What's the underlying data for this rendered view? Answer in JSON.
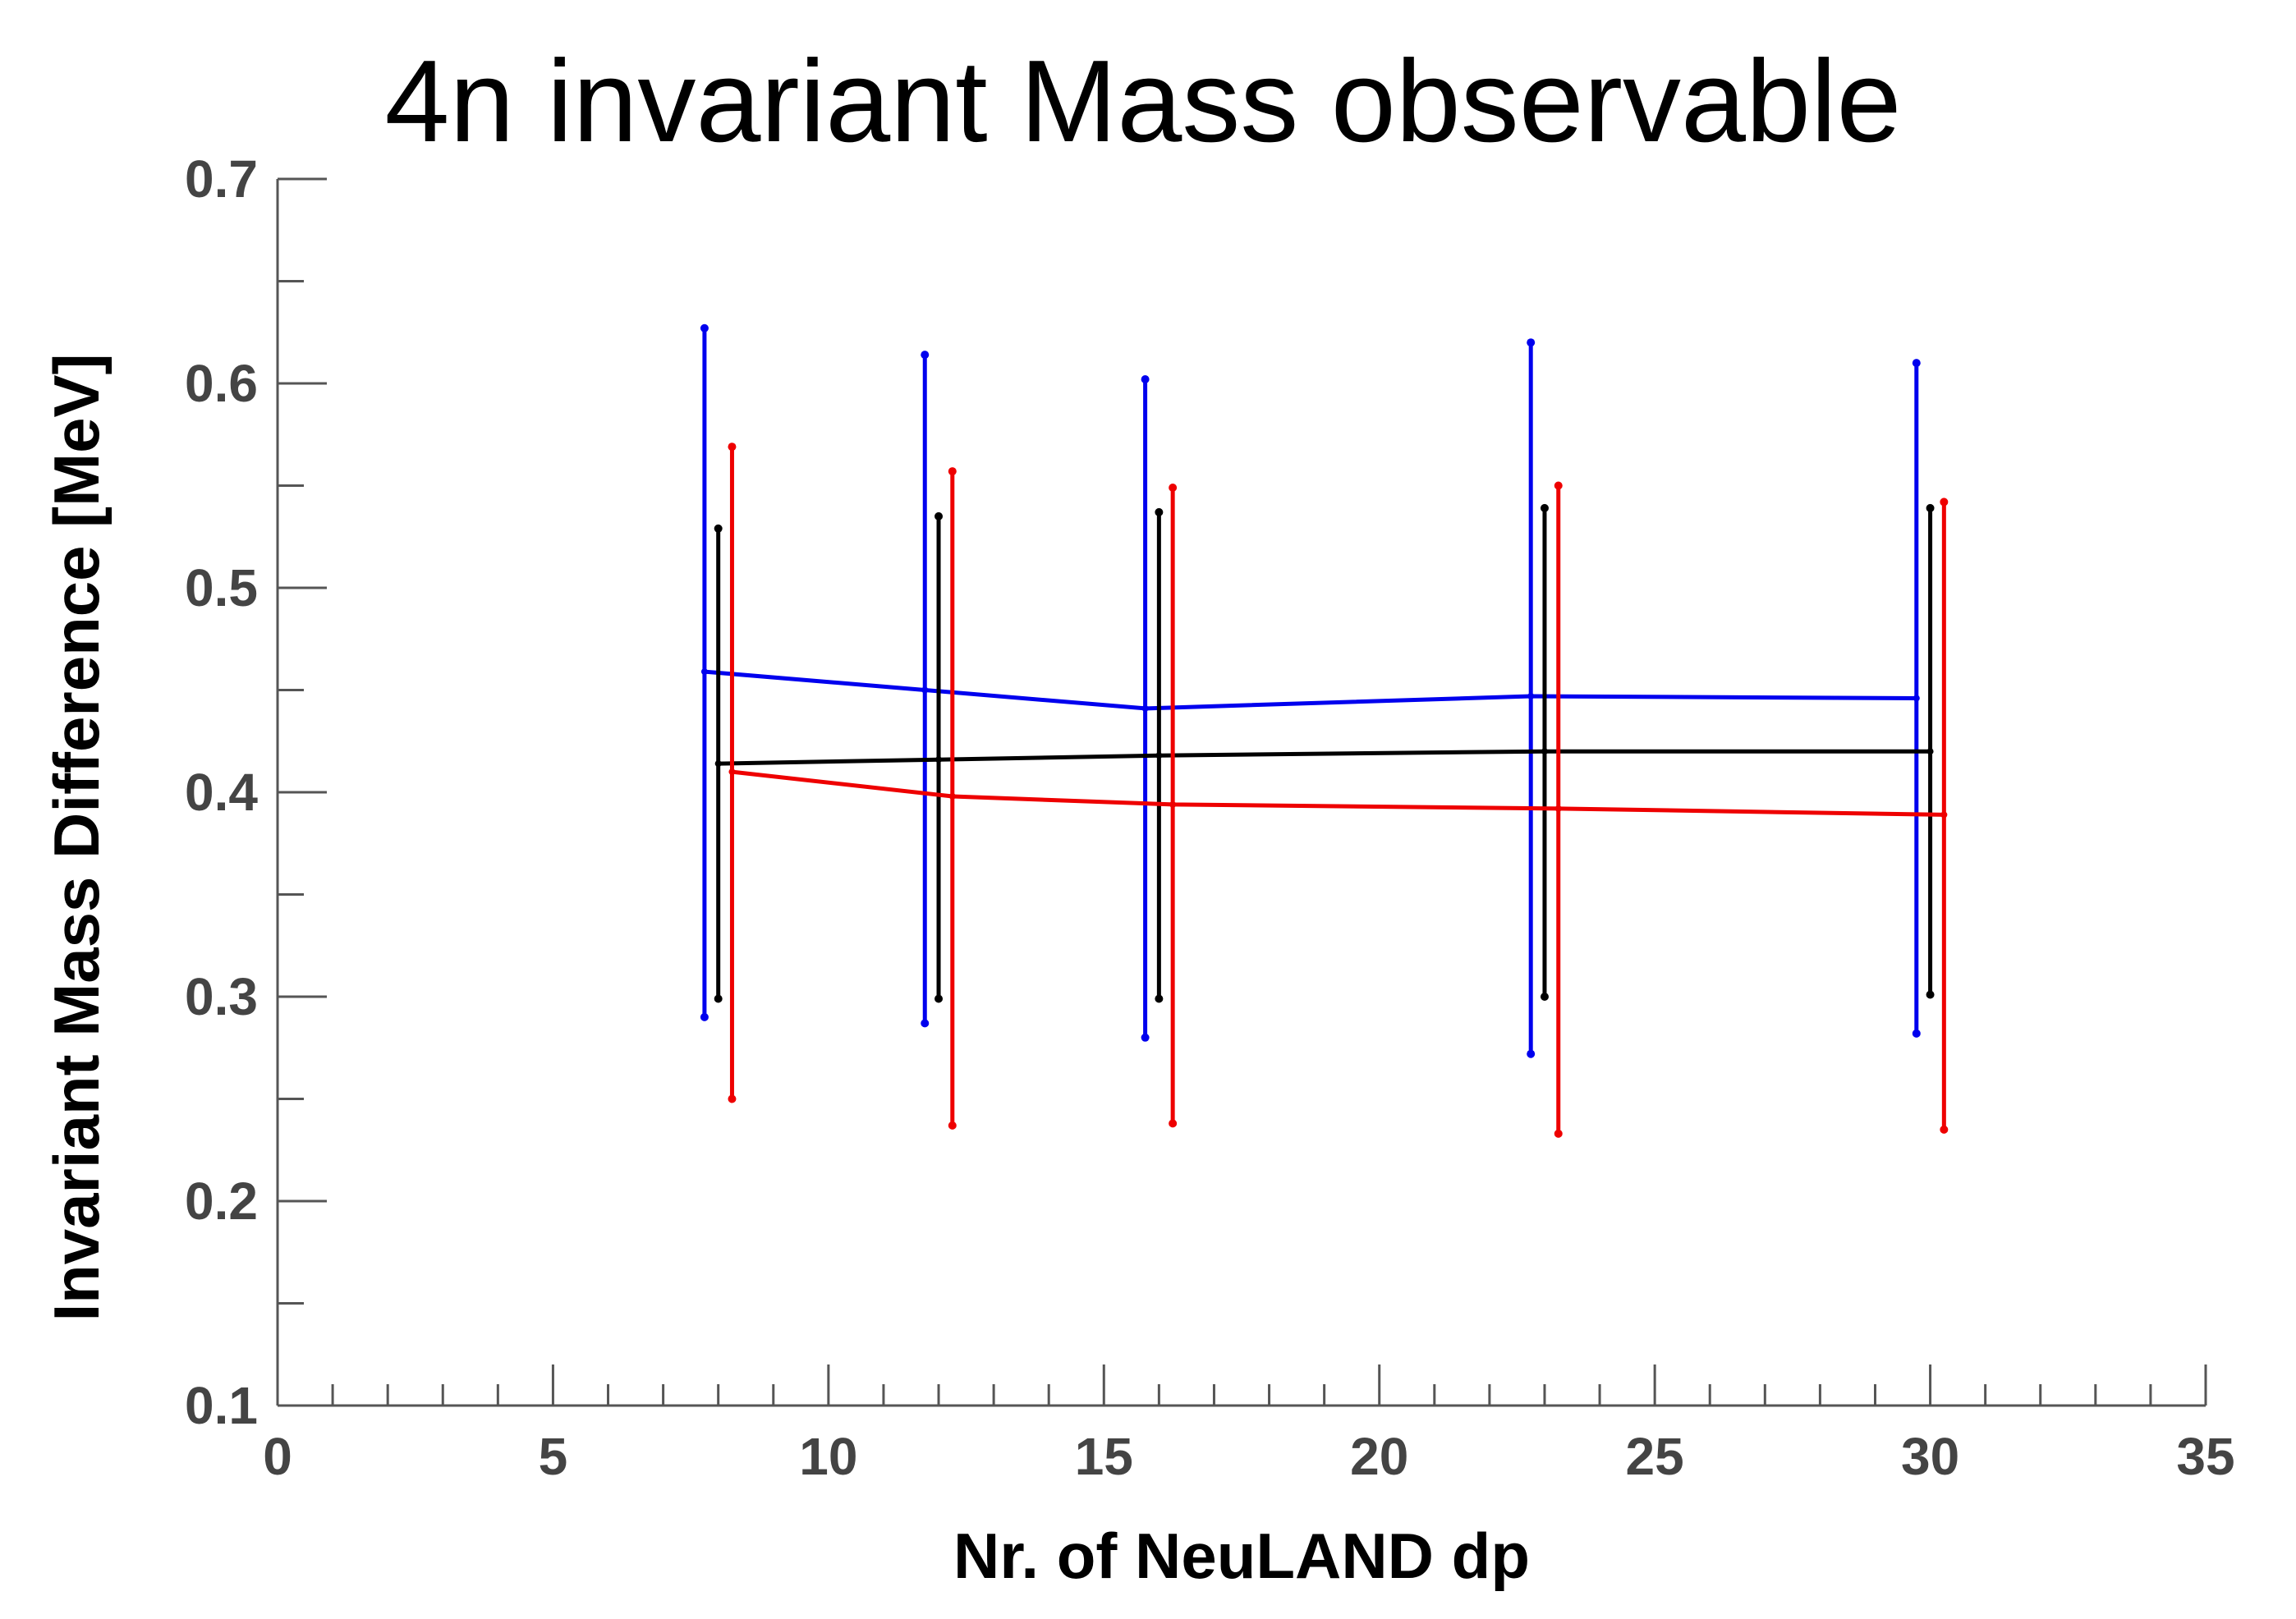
{
  "chart_data": {
    "type": "line",
    "title": "4n invariant Mass observable",
    "xlabel": "Nr. of NeuLAND dp",
    "ylabel": "Invariant Mass Difference [MeV]",
    "xlim": [
      0,
      35
    ],
    "ylim": [
      0.1,
      0.7
    ],
    "x_ticks": [
      "0",
      "5",
      "10",
      "15",
      "20",
      "25",
      "30",
      "35"
    ],
    "y_ticks": [
      "0.1",
      "0.2",
      "0.3",
      "0.4",
      "0.5",
      "0.6",
      "0.7"
    ],
    "grid": false,
    "legend": "none",
    "series": [
      {
        "color": "#0000ee",
        "x": [
          7.75,
          11.75,
          15.75,
          22.75,
          29.75
        ],
        "y": [
          0.459,
          0.45,
          0.441,
          0.447,
          0.446
        ],
        "y_low": [
          0.29,
          0.287,
          0.28,
          0.272,
          0.282
        ],
        "y_high": [
          0.627,
          0.614,
          0.602,
          0.62,
          0.61
        ]
      },
      {
        "color": "#000000",
        "x": [
          8.0,
          12.0,
          16.0,
          23.0,
          30.0
        ],
        "y": [
          0.414,
          0.416,
          0.418,
          0.42,
          0.42
        ],
        "y_low": [
          0.299,
          0.299,
          0.299,
          0.3,
          0.301
        ],
        "y_high": [
          0.529,
          0.535,
          0.537,
          0.539,
          0.539
        ]
      },
      {
        "color": "#ee0000",
        "x": [
          8.25,
          12.25,
          16.25,
          23.25,
          30.25
        ],
        "y": [
          0.41,
          0.398,
          0.394,
          0.392,
          0.389
        ],
        "y_low": [
          0.25,
          0.237,
          0.238,
          0.233,
          0.235
        ],
        "y_high": [
          0.569,
          0.557,
          0.549,
          0.55,
          0.542
        ]
      }
    ]
  }
}
